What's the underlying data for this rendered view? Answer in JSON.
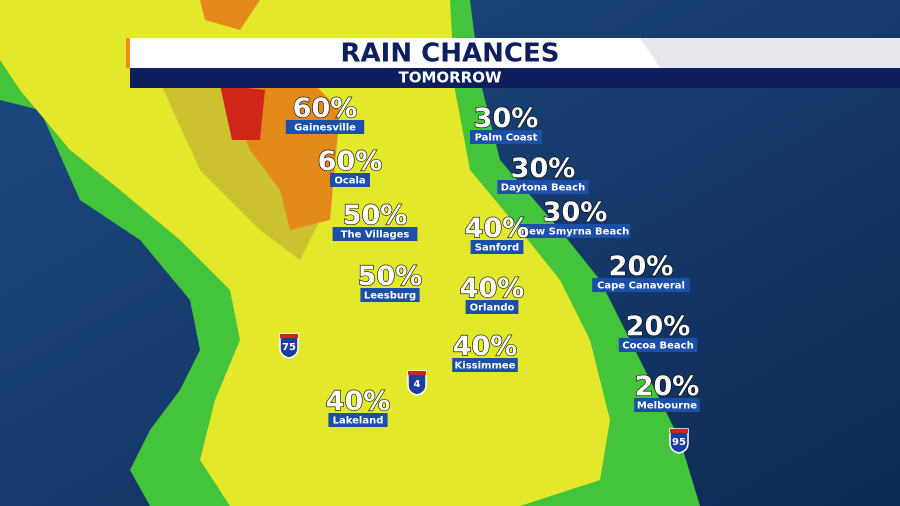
{
  "header": {
    "title": "RAIN CHANCES",
    "subtitle": "TOMORROW"
  },
  "cities": [
    {
      "chance": "60%",
      "name": "Gainesville"
    },
    {
      "chance": "30%",
      "name": "Palm Coast"
    },
    {
      "chance": "60%",
      "name": "Ocala"
    },
    {
      "chance": "30%",
      "name": "Daytona Beach"
    },
    {
      "chance": "50%",
      "name": "The Villages"
    },
    {
      "chance": "30%",
      "name": "New Smyrna Beach"
    },
    {
      "chance": "40%",
      "name": "Sanford"
    },
    {
      "chance": "20%",
      "name": "Cape Canaveral"
    },
    {
      "chance": "50%",
      "name": "Leesburg"
    },
    {
      "chance": "40%",
      "name": "Orlando"
    },
    {
      "chance": "20%",
      "name": "Cocoa Beach"
    },
    {
      "chance": "40%",
      "name": "Kissimmee"
    },
    {
      "chance": "20%",
      "name": "Melbourne"
    },
    {
      "chance": "40%",
      "name": "Lakeland"
    }
  ],
  "highways": [
    "75",
    "4",
    "95"
  ]
}
